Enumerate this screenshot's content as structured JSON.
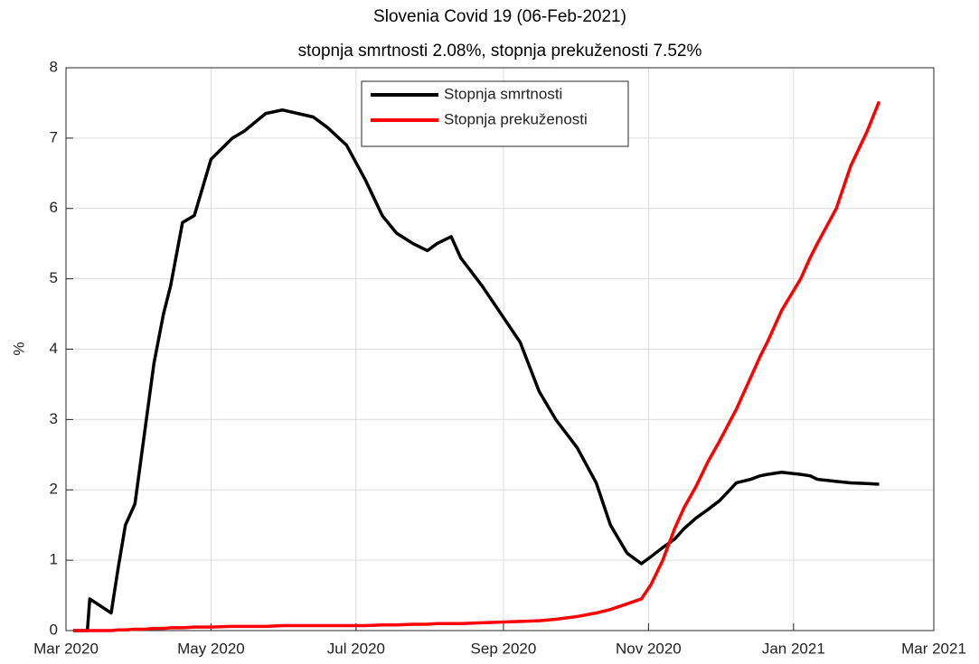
{
  "chart_data": {
    "type": "line",
    "title": "Slovenia Covid 19 (06-Feb-2021)",
    "subtitle": "stopnja smrtnosti 2.08%, stopnja prekuženosti 7.52%",
    "y_label": "%",
    "x": [
      "2020-03-04",
      "2020-03-10",
      "2020-03-11",
      "2020-03-20",
      "2020-03-23",
      "2020-03-26",
      "2020-03-30",
      "2020-04-03",
      "2020-04-07",
      "2020-04-11",
      "2020-04-14",
      "2020-04-19",
      "2020-04-24",
      "2020-05-01",
      "2020-05-10",
      "2020-05-15",
      "2020-05-24",
      "2020-05-31",
      "2020-06-13",
      "2020-06-19",
      "2020-06-27",
      "2020-07-05",
      "2020-07-12",
      "2020-07-18",
      "2020-07-25",
      "2020-07-31",
      "2020-08-04",
      "2020-08-10",
      "2020-08-14",
      "2020-08-23",
      "2020-08-31",
      "2020-09-08",
      "2020-09-16",
      "2020-09-23",
      "2020-10-02",
      "2020-10-10",
      "2020-10-16",
      "2020-10-23",
      "2020-10-29",
      "2020-11-02",
      "2020-11-07",
      "2020-11-12",
      "2020-11-16",
      "2020-11-21",
      "2020-11-26",
      "2020-12-01",
      "2020-12-08",
      "2020-12-14",
      "2020-12-18",
      "2020-12-21",
      "2020-12-27",
      "2021-01-04",
      "2021-01-08",
      "2021-01-11",
      "2021-01-19",
      "2021-01-25",
      "2021-02-01",
      "2021-02-06"
    ],
    "series": [
      {
        "name": "Stopnja smrtnosti",
        "color": "#000000",
        "values": [
          0,
          0,
          0.45,
          0.25,
          0.9,
          1.5,
          1.8,
          2.8,
          3.8,
          4.5,
          4.9,
          5.8,
          5.9,
          6.7,
          7.0,
          7.1,
          7.35,
          7.4,
          7.3,
          7.15,
          6.9,
          6.4,
          5.9,
          5.65,
          5.5,
          5.4,
          5.5,
          5.6,
          5.3,
          4.9,
          4.5,
          4.1,
          3.4,
          3.0,
          2.6,
          2.1,
          1.5,
          1.1,
          0.95,
          1.05,
          1.18,
          1.3,
          1.45,
          1.6,
          1.72,
          1.85,
          2.1,
          2.15,
          2.2,
          2.22,
          2.25,
          2.22,
          2.2,
          2.15,
          2.12,
          2.1,
          2.09,
          2.08
        ]
      },
      {
        "name": "Stopnja prekuženosti",
        "color": "#ff0000",
        "values": [
          0,
          0,
          0,
          0,
          0.01,
          0.01,
          0.02,
          0.02,
          0.03,
          0.03,
          0.04,
          0.04,
          0.05,
          0.05,
          0.06,
          0.06,
          0.06,
          0.07,
          0.07,
          0.07,
          0.07,
          0.07,
          0.08,
          0.08,
          0.09,
          0.09,
          0.1,
          0.1,
          0.1,
          0.11,
          0.12,
          0.13,
          0.14,
          0.16,
          0.2,
          0.25,
          0.3,
          0.38,
          0.45,
          0.65,
          1.0,
          1.45,
          1.75,
          2.05,
          2.4,
          2.7,
          3.15,
          3.6,
          3.9,
          4.1,
          4.55,
          5.0,
          5.3,
          5.5,
          6.0,
          6.6,
          7.1,
          7.52
        ]
      }
    ],
    "xlim": [
      "2020-03-01",
      "2021-03-01"
    ],
    "xticks": [
      {
        "value": "2020-03-01",
        "label": "Mar 2020"
      },
      {
        "value": "2020-05-01",
        "label": "May 2020"
      },
      {
        "value": "2020-07-01",
        "label": "Jul 2020"
      },
      {
        "value": "2020-09-01",
        "label": "Sep 2020"
      },
      {
        "value": "2020-11-01",
        "label": "Nov 2020"
      },
      {
        "value": "2021-01-01",
        "label": "Jan 2021"
      },
      {
        "value": "2021-03-01",
        "label": "Mar 2021"
      }
    ],
    "ylim": [
      0,
      8
    ],
    "yticks": [
      0,
      1,
      2,
      3,
      4,
      5,
      6,
      7,
      8
    ],
    "grid": true,
    "legend": "top"
  }
}
